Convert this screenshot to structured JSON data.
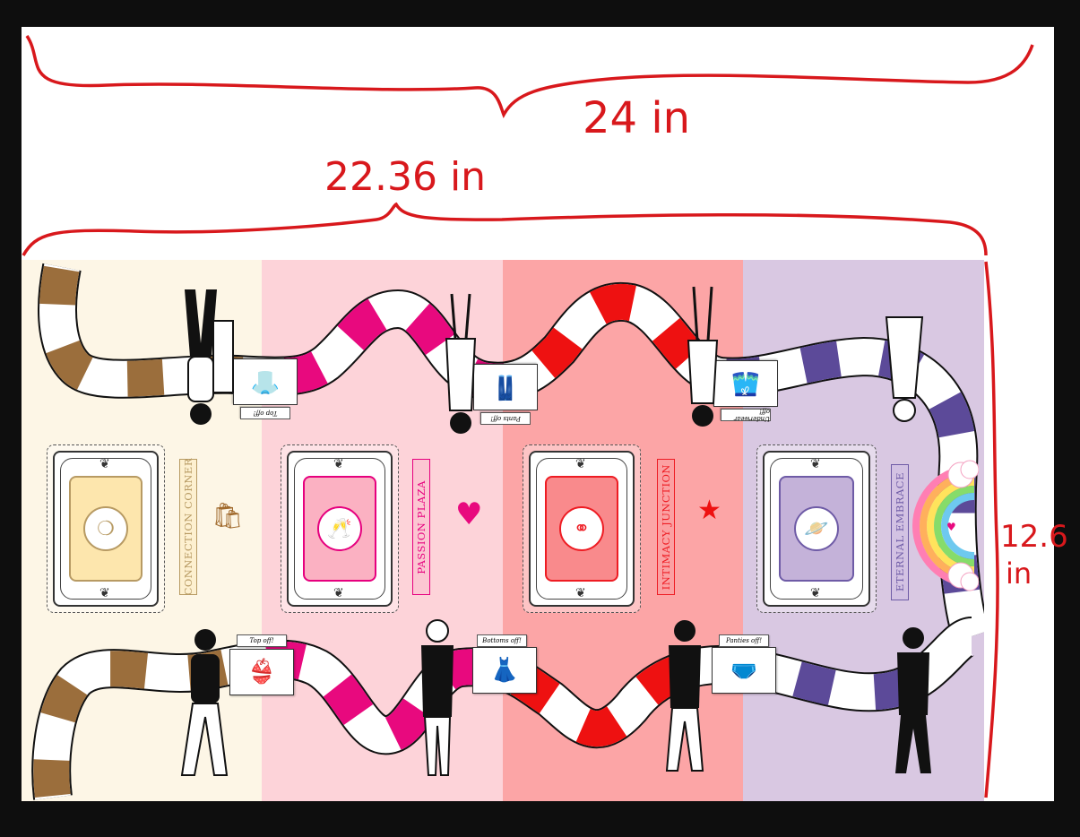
{
  "zones": [
    {
      "id": "connection",
      "label": "CONNECTION CORNER",
      "bg": "#fdf6e6",
      "accent": "#b79a63",
      "face": "#fde6ad",
      "tile_color": "#9b6e3c",
      "icon": "shopping-bag-icon"
    },
    {
      "id": "passion",
      "label": "PASSION PLAZA",
      "bg": "#fdd3d9",
      "accent": "#e6007e",
      "face": "#fbb1c2",
      "tile_color": "#e8097e",
      "icon": "heart-pulse-icon"
    },
    {
      "id": "intimacy",
      "label": "INTIMACY JUNCTION",
      "bg": "#fca5a6",
      "accent": "#ee1c23",
      "face": "#f98a8c",
      "tile_color": "#ee1111",
      "icon": "shooting-star-icon"
    },
    {
      "id": "eternal",
      "label": "ETERNAL EMBRACE",
      "bg": "#d9c8e2",
      "accent": "#6e5ba6",
      "face": "#c4b2d9",
      "tile_color": "#5c4a99",
      "icon": "rainbow-icon"
    }
  ],
  "action_cards": {
    "top": [
      "Top off!",
      "Pants off!",
      "Underwear off!"
    ],
    "bottom": [
      "Top off!",
      "Bottoms off!",
      "Panties off!"
    ]
  },
  "annotations": {
    "total_width": "24 in",
    "board_width": "22.36 in",
    "board_height_line1": "12.6",
    "board_height_line2": "in"
  }
}
